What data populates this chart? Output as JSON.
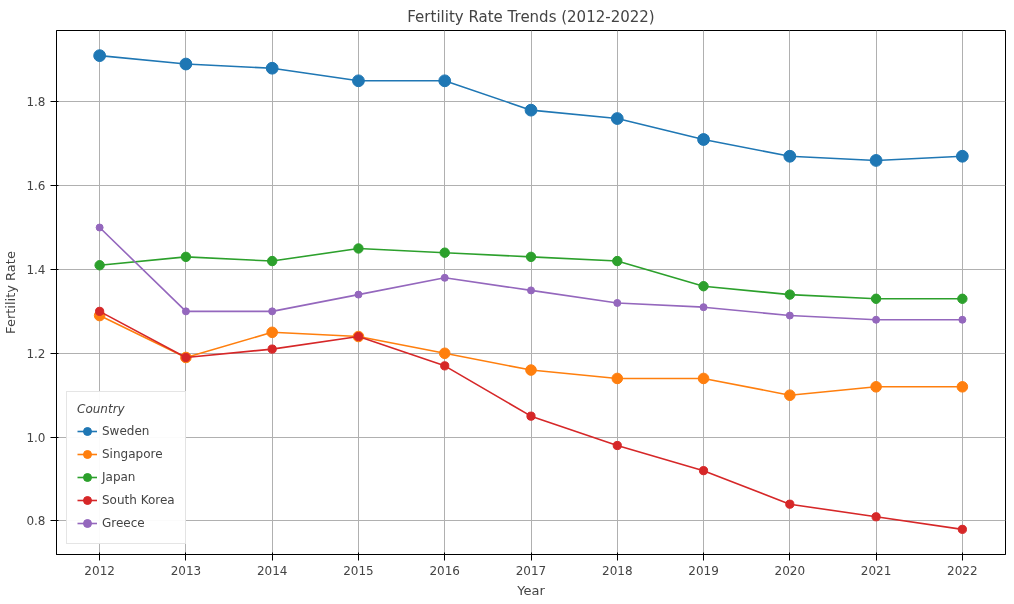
{
  "chart_data": {
    "type": "line",
    "title": "Fertility Rate Trends (2012-2022)",
    "xlabel": "Year",
    "ylabel": "Fertility Rate",
    "legend_title": "Country",
    "x": [
      2012,
      2013,
      2014,
      2015,
      2016,
      2017,
      2018,
      2019,
      2020,
      2021,
      2022
    ],
    "series": [
      {
        "name": "Sweden",
        "color": "#1f77b4",
        "values": [
          1.91,
          1.89,
          1.88,
          1.85,
          1.85,
          1.78,
          1.76,
          1.71,
          1.67,
          1.66,
          1.67
        ]
      },
      {
        "name": "Singapore",
        "color": "#ff7f0e",
        "values": [
          1.29,
          1.19,
          1.25,
          1.24,
          1.2,
          1.16,
          1.14,
          1.14,
          1.1,
          1.12,
          1.12
        ]
      },
      {
        "name": "Japan",
        "color": "#2ca02c",
        "values": [
          1.41,
          1.43,
          1.42,
          1.45,
          1.44,
          1.43,
          1.42,
          1.36,
          1.34,
          1.33,
          1.33
        ]
      },
      {
        "name": "South Korea",
        "color": "#d62728",
        "values": [
          1.3,
          1.19,
          1.21,
          1.24,
          1.17,
          1.05,
          0.98,
          0.92,
          0.84,
          0.81,
          0.78
        ]
      },
      {
        "name": "Greece",
        "color": "#9467bd",
        "values": [
          1.5,
          1.3,
          1.3,
          1.34,
          1.38,
          1.35,
          1.32,
          1.31,
          1.29,
          1.28,
          1.28
        ]
      }
    ],
    "xlim": [
      2011.5,
      2022.5
    ],
    "ylim": [
      0.72,
      1.97
    ],
    "xticks": [
      2012,
      2013,
      2014,
      2015,
      2016,
      2017,
      2018,
      2019,
      2020,
      2021,
      2022
    ],
    "yticks": [
      {
        "value": 0.8,
        "label": "0.8"
      },
      {
        "value": 1.0,
        "label": "1.0"
      },
      {
        "value": 1.2,
        "label": "1.2"
      },
      {
        "value": 1.4,
        "label": "1.4"
      },
      {
        "value": 1.6,
        "label": "1.6"
      },
      {
        "value": 1.8,
        "label": "1.8"
      }
    ],
    "grid": true,
    "legend": "bottom left",
    "marker": "circle",
    "line_style": "solid"
  }
}
